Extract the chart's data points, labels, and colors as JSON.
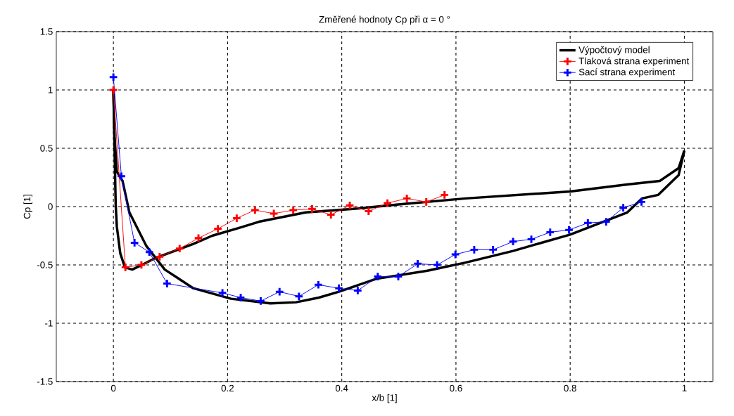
{
  "chart_data": {
    "type": "line",
    "title": "Změřené hodnoty Cp při α = 0 °",
    "xlabel": "x/b [1]",
    "ylabel": "Cp [1]",
    "xlim": [
      -0.1,
      1.05
    ],
    "ylim": [
      -1.5,
      1.5
    ],
    "xticks": [
      0,
      0.2,
      0.4,
      0.6,
      0.8,
      1
    ],
    "yticks": [
      -1.5,
      -1,
      -0.5,
      0,
      0.5,
      1,
      1.5
    ],
    "grid": true,
    "legend": "top right",
    "line_style": "solid",
    "series": [
      {
        "name": "Výpočtový model",
        "color": "#000000",
        "marker": "none",
        "x": [
          0.0,
          0.002,
          0.004,
          0.006,
          0.012,
          0.02,
          0.033,
          0.05,
          0.074,
          0.14,
          0.173,
          0.222,
          0.255,
          0.337,
          0.42,
          0.502,
          0.617,
          0.8,
          0.9,
          0.957,
          0.99,
          1.0
        ],
        "values": [
          1.0,
          0.5,
          0.02,
          -0.17,
          -0.4,
          -0.52,
          -0.54,
          -0.5,
          -0.44,
          -0.32,
          -0.25,
          -0.18,
          -0.13,
          -0.05,
          -0.02,
          0.02,
          0.07,
          0.13,
          0.19,
          0.22,
          0.33,
          0.48
        ]
      },
      {
        "color": "#000000",
        "marker": "none",
        "x": [
          0.0,
          0.002,
          0.006,
          0.016,
          0.028,
          0.058,
          0.09,
          0.14,
          0.206,
          0.275,
          0.32,
          0.36,
          0.395,
          0.46,
          0.55,
          0.617,
          0.7,
          0.8,
          0.9,
          0.926,
          0.954,
          0.99,
          1.0
        ],
        "values": [
          1.0,
          0.6,
          0.3,
          0.22,
          -0.05,
          -0.34,
          -0.54,
          -0.7,
          -0.79,
          -0.83,
          -0.82,
          -0.78,
          -0.73,
          -0.62,
          -0.55,
          -0.48,
          -0.38,
          -0.24,
          -0.05,
          0.07,
          0.1,
          0.27,
          0.48
        ]
      },
      {
        "name": "Tlaková strana experiment",
        "color": "#ff0000",
        "marker": "cross",
        "x": [
          0.0,
          0.021,
          0.049,
          0.081,
          0.116,
          0.149,
          0.183,
          0.216,
          0.248,
          0.281,
          0.315,
          0.348,
          0.381,
          0.414,
          0.447,
          0.48,
          0.514,
          0.548,
          0.58
        ],
        "values": [
          1.0,
          -0.52,
          -0.5,
          -0.43,
          -0.36,
          -0.27,
          -0.19,
          -0.1,
          -0.03,
          -0.06,
          -0.03,
          -0.02,
          -0.07,
          0.01,
          -0.04,
          0.03,
          0.07,
          0.04,
          0.1
        ]
      },
      {
        "name": "Sací strana experiment",
        "color": "#0000ff",
        "marker": "cross",
        "x": [
          0.0,
          0.014,
          0.037,
          0.063,
          0.094,
          0.191,
          0.223,
          0.258,
          0.291,
          0.325,
          0.359,
          0.395,
          0.428,
          0.463,
          0.499,
          0.533,
          0.567,
          0.599,
          0.632,
          0.665,
          0.7,
          0.732,
          0.765,
          0.798,
          0.831,
          0.863,
          0.893,
          0.925
        ],
        "values": [
          1.11,
          0.26,
          -0.31,
          -0.39,
          -0.66,
          -0.74,
          -0.78,
          -0.81,
          -0.73,
          -0.77,
          -0.67,
          -0.7,
          -0.72,
          -0.6,
          -0.6,
          -0.49,
          -0.5,
          -0.41,
          -0.37,
          -0.37,
          -0.3,
          -0.28,
          -0.22,
          -0.2,
          -0.14,
          -0.13,
          -0.01,
          0.04
        ]
      }
    ]
  }
}
